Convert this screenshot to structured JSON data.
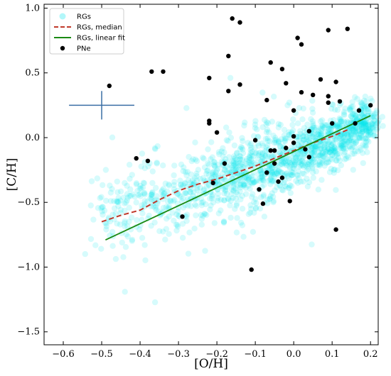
{
  "chart_data": {
    "type": "scatter",
    "title": "",
    "xlabel": "[O/H]",
    "ylabel": "[C/H]",
    "xlim": [
      -0.65,
      0.22
    ],
    "ylim": [
      -1.6,
      1.03
    ],
    "xticks": [
      -0.6,
      -0.5,
      -0.4,
      -0.3,
      -0.2,
      -0.1,
      0.0,
      0.1,
      0.2
    ],
    "xtick_labels": [
      "−0.6",
      "−0.5",
      "−0.4",
      "−0.3",
      "−0.2",
      "−0.1",
      "0.0",
      "0.1",
      "0.2"
    ],
    "yticks": [
      -1.5,
      -1.0,
      -0.5,
      0.0,
      0.5,
      1.0
    ],
    "ytick_labels": [
      "−1.5",
      "−1.0",
      "−0.5",
      "0.0",
      "0.5",
      "1.0"
    ],
    "grid": false,
    "legend_position": "top-left",
    "series": [
      {
        "name": "RGs",
        "kind": "scatter-density",
        "color": "#00e5ee",
        "x": [
          -0.5,
          -0.45,
          -0.4,
          -0.35,
          -0.3,
          -0.25,
          -0.2,
          -0.15,
          -0.1,
          -0.05,
          0.0,
          0.05,
          0.1,
          0.15,
          0.2
        ],
        "y": [
          -0.58,
          -0.55,
          -0.5,
          -0.46,
          -0.44,
          -0.4,
          -0.36,
          -0.31,
          -0.26,
          -0.2,
          -0.14,
          -0.08,
          -0.02,
          0.05,
          0.13
        ],
        "spread": [
          0.14,
          0.15,
          0.15,
          0.16,
          0.16,
          0.16,
          0.16,
          0.15,
          0.15,
          0.14,
          0.13,
          0.12,
          0.11,
          0.1,
          0.08
        ]
      },
      {
        "name": "RGs, median",
        "kind": "line-dashed",
        "color": "#c0392b",
        "x": [
          -0.5,
          -0.45,
          -0.4,
          -0.35,
          -0.3,
          -0.25,
          -0.2,
          -0.15,
          -0.1,
          -0.05,
          0.0,
          0.05,
          0.1,
          0.14
        ],
        "y": [
          -0.65,
          -0.6,
          -0.56,
          -0.48,
          -0.41,
          -0.36,
          -0.32,
          -0.27,
          -0.22,
          -0.16,
          -0.1,
          -0.04,
          0.01,
          0.06
        ]
      },
      {
        "name": "RGs, linear fit",
        "kind": "line",
        "color": "#1a8a12",
        "x": [
          -0.49,
          0.2
        ],
        "y": [
          -0.79,
          0.17
        ]
      },
      {
        "name": "PNe",
        "kind": "scatter",
        "color": "#000000",
        "x": [
          -0.48,
          -0.41,
          -0.38,
          -0.37,
          -0.34,
          -0.29,
          -0.22,
          -0.22,
          -0.22,
          -0.21,
          -0.2,
          -0.18,
          -0.17,
          -0.17,
          -0.16,
          -0.14,
          -0.14,
          -0.11,
          -0.1,
          -0.09,
          -0.08,
          -0.07,
          -0.07,
          -0.06,
          -0.06,
          -0.05,
          -0.05,
          -0.04,
          -0.03,
          -0.03,
          -0.02,
          -0.02,
          -0.01,
          0.0,
          0.0,
          0.0,
          0.01,
          0.02,
          0.02,
          0.03,
          0.04,
          0.04,
          0.05,
          0.07,
          0.09,
          0.09,
          0.09,
          0.1,
          0.11,
          0.11,
          0.12,
          0.14,
          0.16,
          0.17,
          0.2
        ],
        "y": [
          0.4,
          -0.16,
          -0.18,
          0.51,
          0.51,
          -0.61,
          0.46,
          0.13,
          0.11,
          -0.35,
          0.04,
          -0.2,
          0.63,
          0.36,
          0.92,
          0.89,
          0.41,
          -1.02,
          -0.02,
          -0.4,
          -0.51,
          0.29,
          -0.27,
          -0.1,
          0.58,
          -0.1,
          -0.2,
          -0.34,
          0.53,
          -0.31,
          0.42,
          -0.08,
          -0.49,
          0.21,
          0.01,
          -0.04,
          0.77,
          0.35,
          0.72,
          -0.09,
          0.05,
          -0.15,
          0.33,
          0.45,
          0.83,
          0.32,
          0.27,
          0.11,
          0.43,
          -0.71,
          0.28,
          0.84,
          0.11,
          0.21,
          0.25
        ]
      }
    ],
    "errorbar": {
      "x": -0.5,
      "y": 0.25,
      "xerr": 0.085,
      "yerr": 0.11,
      "color": "#3a6ea5"
    }
  }
}
